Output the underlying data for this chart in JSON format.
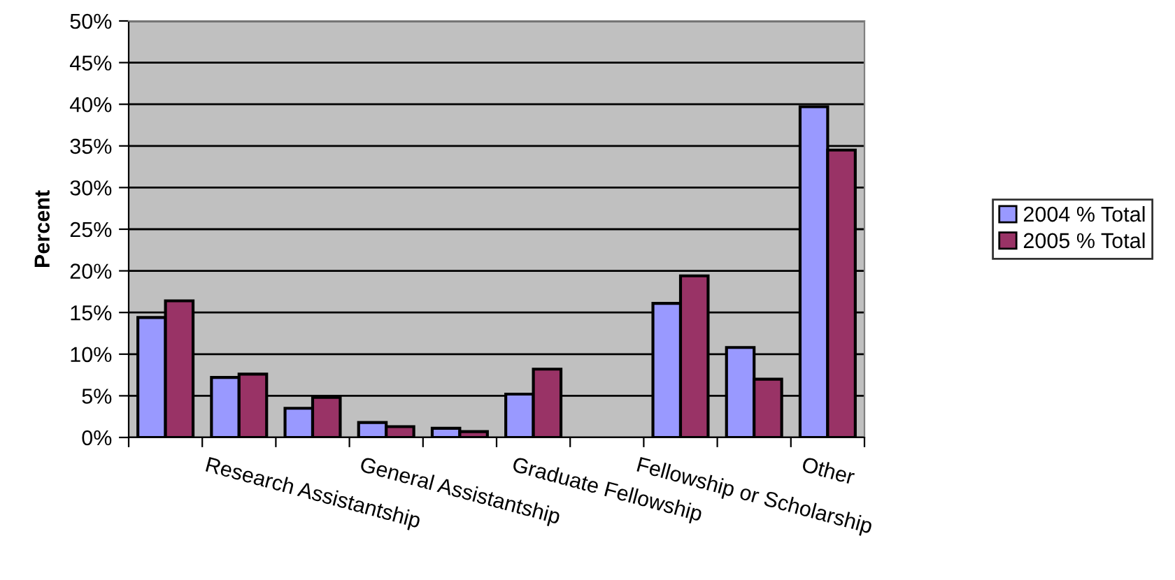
{
  "chart_data": {
    "type": "bar",
    "ylabel": "Percent",
    "categories": [
      null,
      null,
      "Research Assistantship",
      null,
      "General Assistantship",
      null,
      "Graduate Fellowship",
      null,
      "Fellowship or Scholarship",
      "Other"
    ],
    "series": [
      {
        "name": "2004 % Total",
        "color": "#9999ff",
        "values": [
          14.4,
          7.2,
          3.5,
          1.8,
          1.1,
          5.2,
          null,
          16.1,
          10.8,
          39.7
        ]
      },
      {
        "name": "2005 % Total",
        "color": "#993366",
        "values": [
          16.4,
          7.6,
          4.8,
          1.3,
          0.7,
          8.2,
          null,
          19.4,
          7.0,
          34.5
        ]
      }
    ],
    "ylim": [
      0,
      50
    ],
    "yticks": [
      {
        "value": 0,
        "label": "0%"
      },
      {
        "value": 5,
        "label": "5%"
      },
      {
        "value": 10,
        "label": "10%"
      },
      {
        "value": 15,
        "label": "15%"
      },
      {
        "value": 20,
        "label": "20%"
      },
      {
        "value": 25,
        "label": "25%"
      },
      {
        "value": 30,
        "label": "30%"
      },
      {
        "value": 35,
        "label": "35%"
      },
      {
        "value": 40,
        "label": "40%"
      },
      {
        "value": 45,
        "label": "45%"
      },
      {
        "value": 50,
        "label": "50%"
      }
    ],
    "grid": "y",
    "legend": "right"
  }
}
